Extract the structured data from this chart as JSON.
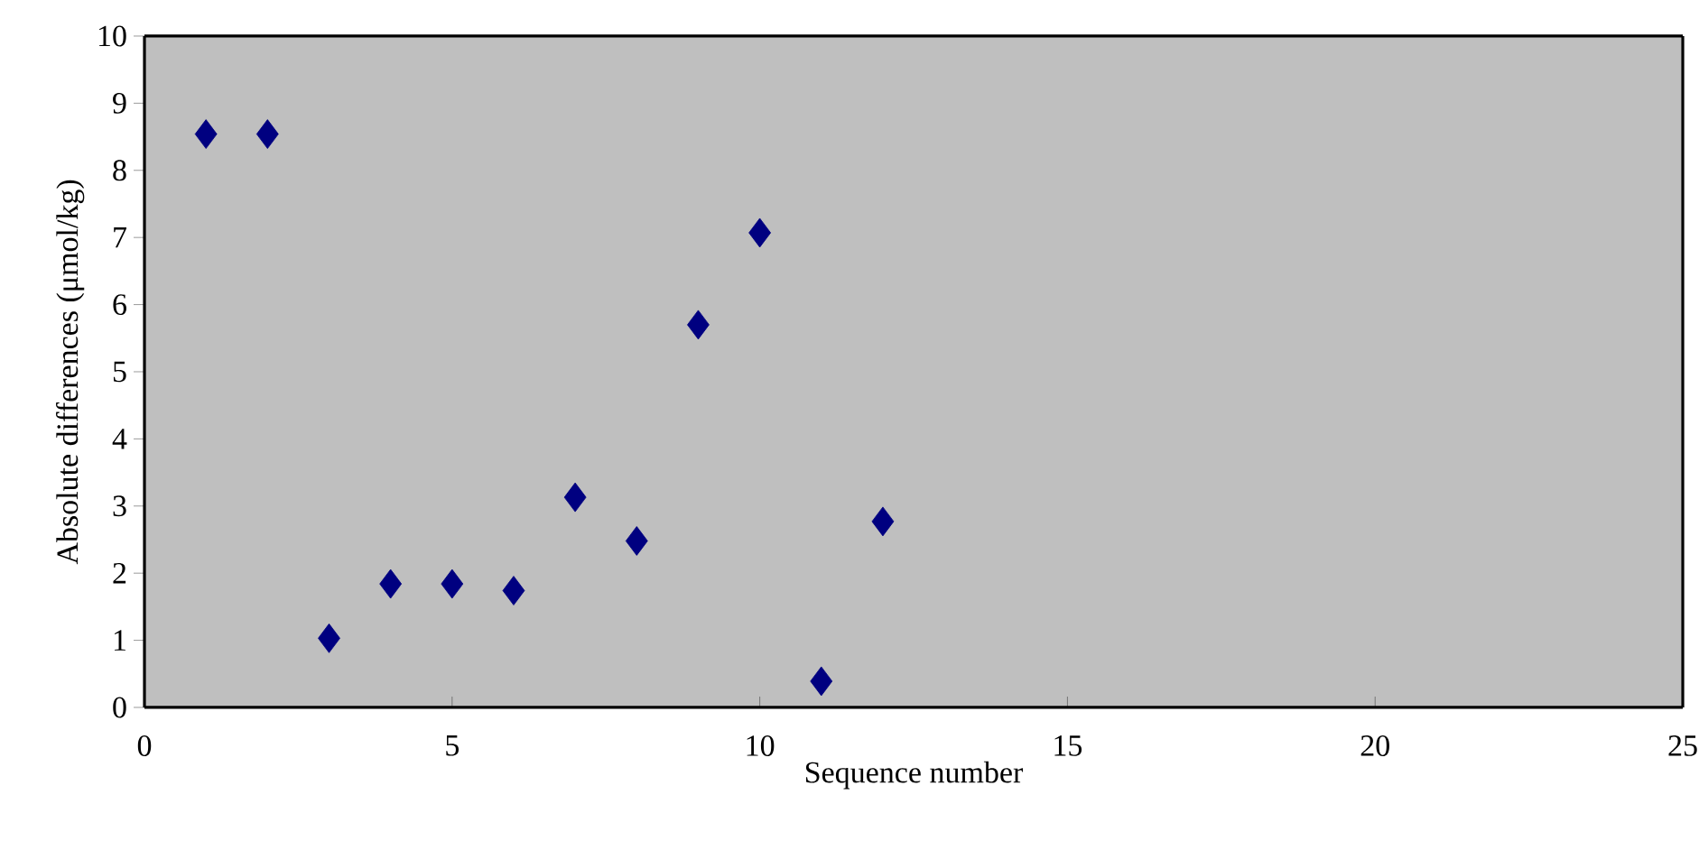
{
  "chart_data": {
    "type": "scatter",
    "xlabel": "Sequence number",
    "ylabel": "Absolute differences (μmol/kg)",
    "x": [
      1,
      2,
      3,
      4,
      5,
      6,
      7,
      8,
      9,
      10,
      11,
      12
    ],
    "values": [
      8.54,
      8.54,
      1.03,
      1.84,
      1.84,
      1.74,
      3.13,
      2.48,
      5.7,
      7.07,
      0.39,
      2.77
    ],
    "color": "#000080",
    "marker": "diamond",
    "xlim": [
      0,
      25
    ],
    "ylim": [
      0,
      10
    ],
    "xticks": [
      0,
      5,
      10,
      15,
      20,
      25
    ],
    "yticks": [
      0,
      1,
      2,
      3,
      4,
      5,
      6,
      7,
      8,
      9,
      10
    ]
  }
}
